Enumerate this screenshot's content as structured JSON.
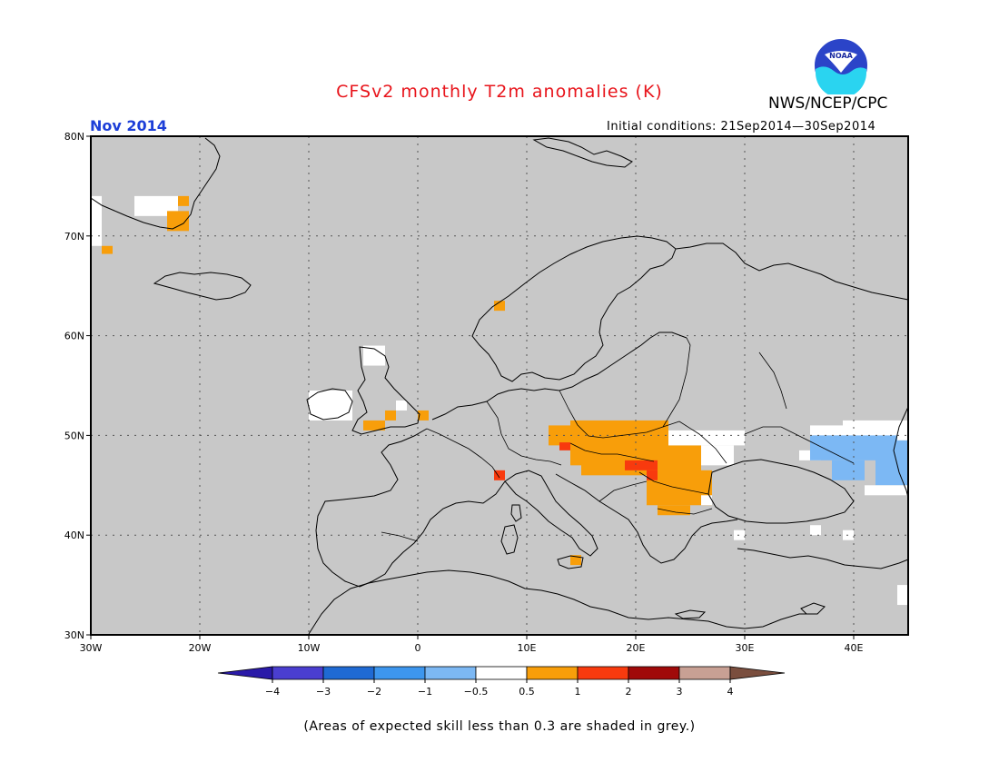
{
  "title": "CFSv2 monthly T2m anomalies (K)",
  "agency": "NWS/NCEP/CPC",
  "logo_text": "NOAA",
  "forecast_month": "Nov 2014",
  "initial_conditions": "Initial conditions: 21Sep2014—30Sep2014",
  "footnote": "(Areas of expected skill less than 0.3 are shaded in grey.)",
  "map": {
    "lon_range": [
      -30,
      45
    ],
    "lat_range": [
      30,
      80
    ],
    "lon_ticks": [
      {
        "value": -30,
        "label": "30W"
      },
      {
        "value": -20,
        "label": "20W"
      },
      {
        "value": -10,
        "label": "10W"
      },
      {
        "value": 0,
        "label": "0"
      },
      {
        "value": 10,
        "label": "10E"
      },
      {
        "value": 20,
        "label": "20E"
      },
      {
        "value": 30,
        "label": "30E"
      },
      {
        "value": 40,
        "label": "40E"
      }
    ],
    "lat_ticks": [
      {
        "value": 80,
        "label": "80N"
      },
      {
        "value": 70,
        "label": "70N"
      },
      {
        "value": 60,
        "label": "60N"
      },
      {
        "value": 50,
        "label": "50N"
      },
      {
        "value": 40,
        "label": "40N"
      },
      {
        "value": 30,
        "label": "30N"
      }
    ],
    "background_color": "#c8c8c8"
  },
  "colorbar": {
    "bins": [
      {
        "color": "#2a1aa8"
      },
      {
        "color": "#4a3ed0"
      },
      {
        "color": "#1f6ad4"
      },
      {
        "color": "#3d96ee"
      },
      {
        "color": "#7cb8f4"
      },
      {
        "color": "#ffffff"
      },
      {
        "color": "#f89e0a"
      },
      {
        "color": "#f83a0e"
      },
      {
        "color": "#a00a0a"
      },
      {
        "color": "#c8a094"
      },
      {
        "color": "#7a4e3e"
      }
    ],
    "labels": [
      "−4",
      "−3",
      "−2",
      "−1",
      "−0.5",
      "0.5",
      "1",
      "2",
      "3",
      "4"
    ]
  },
  "anomaly_regions": [
    {
      "lon": [
        -30,
        -29
      ],
      "lat": [
        69,
        74
      ],
      "value": 0
    },
    {
      "lon": [
        -29,
        -28
      ],
      "lat": [
        68.2,
        69
      ],
      "value": 0.8
    },
    {
      "lon": [
        -26,
        -22
      ],
      "lat": [
        72,
        74
      ],
      "value": 0
    },
    {
      "lon": [
        -23,
        -21
      ],
      "lat": [
        70.5,
        72.5
      ],
      "value": 0.8
    },
    {
      "lon": [
        -22,
        -21
      ],
      "lat": [
        73,
        74
      ],
      "value": 0.8
    },
    {
      "lon": [
        7,
        8
      ],
      "lat": [
        62.5,
        63.5
      ],
      "value": 0.8
    },
    {
      "lon": [
        -5,
        -3
      ],
      "lat": [
        57,
        59
      ],
      "value": 0
    },
    {
      "lon": [
        -10,
        -6
      ],
      "lat": [
        51.5,
        54.5
      ],
      "value": 0
    },
    {
      "lon": [
        -2,
        -1
      ],
      "lat": [
        52.5,
        53.5
      ],
      "value": 0
    },
    {
      "lon": [
        -3,
        -2
      ],
      "lat": [
        51.5,
        52.5
      ],
      "value": 0.8
    },
    {
      "lon": [
        0,
        1
      ],
      "lat": [
        51.5,
        52.5
      ],
      "value": 0.8
    },
    {
      "lon": [
        -5,
        -3
      ],
      "lat": [
        50.5,
        51.5
      ],
      "value": 0.8
    },
    {
      "lon": [
        7,
        8
      ],
      "lat": [
        45.5,
        46.5
      ],
      "value": 1.5
    },
    {
      "lon": [
        14,
        15
      ],
      "lat": [
        37,
        38
      ],
      "value": 0.8
    },
    {
      "lon": [
        12,
        14
      ],
      "lat": [
        49,
        51
      ],
      "value": 0.8
    },
    {
      "lon": [
        14,
        23
      ],
      "lat": [
        47,
        51.5
      ],
      "value": 0.8
    },
    {
      "lon": [
        15,
        26
      ],
      "lat": [
        46,
        49
      ],
      "value": 0.8
    },
    {
      "lon": [
        21,
        27
      ],
      "lat": [
        43,
        46.5
      ],
      "value": 0.8
    },
    {
      "lon": [
        22,
        25
      ],
      "lat": [
        42,
        43
      ],
      "value": 0.8
    },
    {
      "lon": [
        13,
        14
      ],
      "lat": [
        48.5,
        49.3
      ],
      "value": 1.5
    },
    {
      "lon": [
        19,
        22
      ],
      "lat": [
        46.5,
        47.5
      ],
      "value": 1.5
    },
    {
      "lon": [
        21,
        22
      ],
      "lat": [
        45.5,
        46.5
      ],
      "value": 1.5
    },
    {
      "lon": [
        23,
        30
      ],
      "lat": [
        49,
        50.5
      ],
      "value": 0
    },
    {
      "lon": [
        26,
        29
      ],
      "lat": [
        47,
        49
      ],
      "value": 0
    },
    {
      "lon": [
        26,
        27
      ],
      "lat": [
        43,
        44
      ],
      "value": 0
    },
    {
      "lon": [
        29,
        30
      ],
      "lat": [
        39.5,
        40.5
      ],
      "value": 0
    },
    {
      "lon": [
        36,
        40
      ],
      "lat": [
        50,
        51
      ],
      "value": 0
    },
    {
      "lon": [
        39,
        45
      ],
      "lat": [
        49.5,
        51.5
      ],
      "value": 0
    },
    {
      "lon": [
        35,
        37
      ],
      "lat": [
        47.5,
        48.5
      ],
      "value": 0
    },
    {
      "lon": [
        36,
        44
      ],
      "lat": [
        47.5,
        50
      ],
      "value": -0.8
    },
    {
      "lon": [
        38,
        41
      ],
      "lat": [
        45.5,
        47.5
      ],
      "value": -0.8
    },
    {
      "lon": [
        42,
        45
      ],
      "lat": [
        45,
        49.5
      ],
      "value": -0.8
    },
    {
      "lon": [
        41,
        45
      ],
      "lat": [
        44,
        45
      ],
      "value": 0
    },
    {
      "lon": [
        36,
        37
      ],
      "lat": [
        40,
        41
      ],
      "value": 0
    },
    {
      "lon": [
        39,
        40
      ],
      "lat": [
        39.5,
        40.5
      ],
      "value": 0
    },
    {
      "lon": [
        44,
        45
      ],
      "lat": [
        33,
        35
      ],
      "value": 0
    }
  ]
}
